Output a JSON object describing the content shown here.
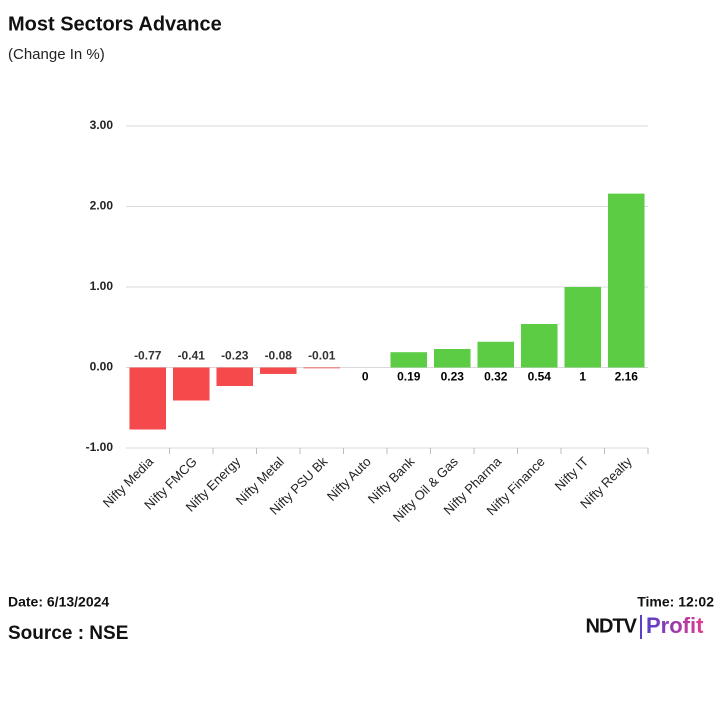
{
  "chart_data": {
    "type": "bar",
    "title": "Most Sectors Advance",
    "subtitle": "(Change In %)",
    "categories": [
      "Nifty Media",
      "Nifty FMCG",
      "Nifty Energy",
      "Nifty Metal",
      "Nifty PSU Bk",
      "Nifty Auto",
      "Nifty Bank",
      "Nifty Oil & Gas",
      "Nifty Pharma",
      "Nifty Finance",
      "Nifty IT",
      "Nifty Realty"
    ],
    "values": [
      -0.77,
      -0.41,
      -0.23,
      -0.08,
      -0.01,
      0,
      0.19,
      0.23,
      0.32,
      0.54,
      1,
      2.16
    ],
    "negative_color": "#f44a4c",
    "positive_color": "#5ccc45",
    "ylim": [
      -1,
      3
    ],
    "yticks": [
      {
        "value": -1,
        "label": "-1.00"
      },
      {
        "value": 0,
        "label": "0.00"
      },
      {
        "value": 1,
        "label": "1.00"
      },
      {
        "value": 2,
        "label": "2.00"
      },
      {
        "value": 3,
        "label": "3.00"
      }
    ],
    "grid": true
  },
  "footer": {
    "date": "Date: 6/13/2024",
    "time": "Time: 12:02",
    "source": "Source : NSE"
  },
  "logo": {
    "brand": "NDTV",
    "product": "Profit"
  }
}
